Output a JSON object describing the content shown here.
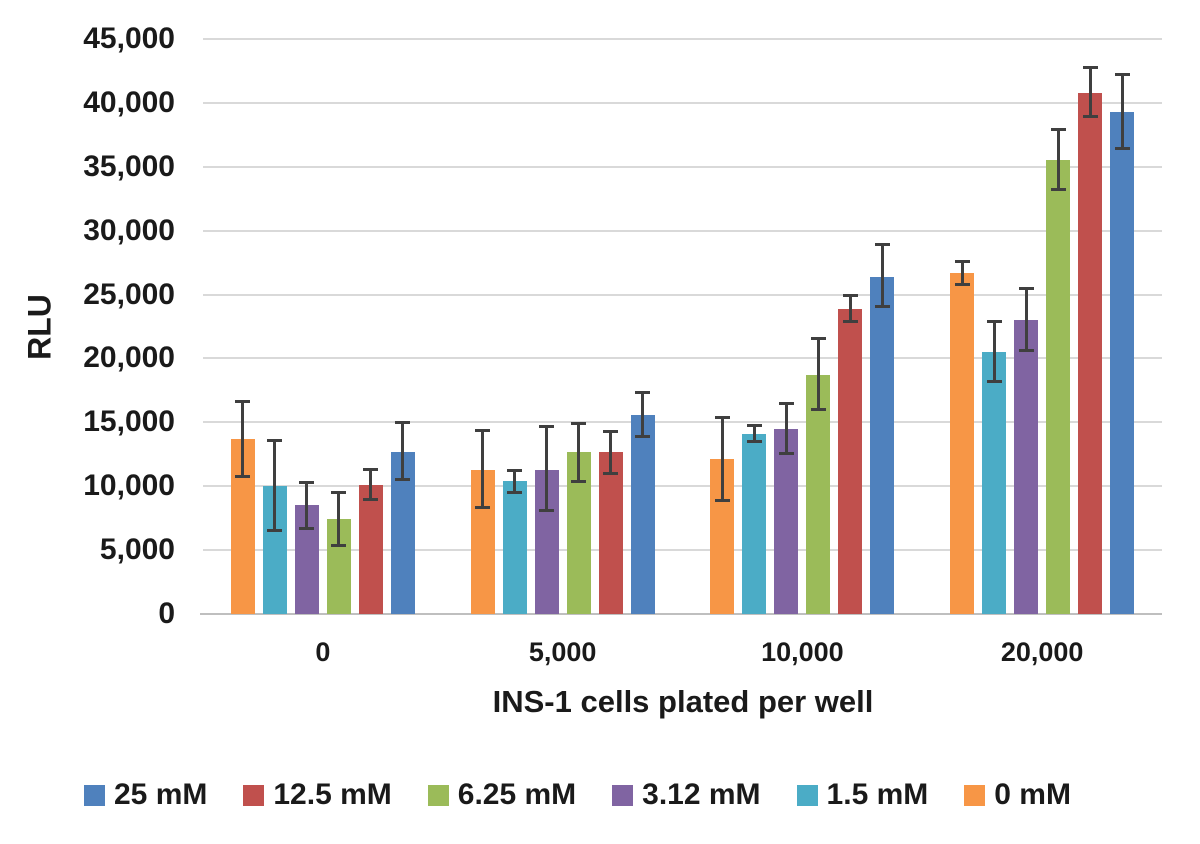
{
  "chart_data": {
    "type": "bar",
    "title": "",
    "ylabel": "RLU",
    "xlabel": "INS-1 cells plated per well",
    "categories": [
      "0",
      "5,000",
      "10,000",
      "20,000"
    ],
    "ylim": [
      0,
      45000
    ],
    "ytick_step": 5000,
    "ytick_labels": [
      "0",
      "5,000",
      "10,000",
      "15,000",
      "20,000",
      "25,000",
      "30,000",
      "35,000",
      "40,000",
      "45,000"
    ],
    "grid": true,
    "error_bars": true,
    "error_bar_color": "#3f3f3f",
    "gridline_color": "#d9d9d9",
    "axis_line_color": "#bfbfbf",
    "legend_position": "bottom",
    "series": [
      {
        "name": "0 mM",
        "color": "#F79646",
        "values": [
          13700,
          11300,
          12100,
          26700
        ],
        "err_low": [
          2900,
          3000,
          3200,
          900
        ],
        "err_high": [
          2900,
          3100,
          3300,
          900
        ]
      },
      {
        "name": "1.5 mM",
        "color": "#4BACC6",
        "values": [
          10000,
          10400,
          14100,
          20500
        ],
        "err_low": [
          3500,
          900,
          600,
          2300
        ],
        "err_high": [
          3600,
          800,
          650,
          2400
        ]
      },
      {
        "name": "3.12 mM",
        "color": "#8064A2",
        "values": [
          8500,
          11300,
          14500,
          23000
        ],
        "err_low": [
          1800,
          3200,
          1900,
          2400
        ],
        "err_high": [
          1800,
          3400,
          2000,
          2500
        ]
      },
      {
        "name": "6.25 mM",
        "color": "#9BBB59",
        "values": [
          7400,
          12700,
          18700,
          35500
        ],
        "err_low": [
          2000,
          2300,
          2700,
          2300
        ],
        "err_high": [
          2100,
          2200,
          2900,
          2400
        ]
      },
      {
        "name": "12.5 mM",
        "color": "#C0504D",
        "values": [
          10100,
          12700,
          23900,
          40800
        ],
        "err_low": [
          1100,
          1700,
          1000,
          1900
        ],
        "err_high": [
          1200,
          1600,
          1000,
          2000
        ]
      },
      {
        "name": "25 mM",
        "color": "#4F81BD",
        "values": [
          12700,
          15600,
          26400,
          39300
        ],
        "err_low": [
          2200,
          1700,
          2300,
          2900
        ],
        "err_high": [
          2300,
          1700,
          2500,
          2900
        ]
      }
    ],
    "legend": [
      {
        "label": "25 mM",
        "color": "#4F81BD"
      },
      {
        "label": "12.5 mM",
        "color": "#C0504D"
      },
      {
        "label": "6.25 mM",
        "color": "#9BBB59"
      },
      {
        "label": "3.12 mM",
        "color": "#8064A2"
      },
      {
        "label": "1.5 mM",
        "color": "#4BACC6"
      },
      {
        "label": "0 mM",
        "color": "#F79646"
      }
    ]
  }
}
